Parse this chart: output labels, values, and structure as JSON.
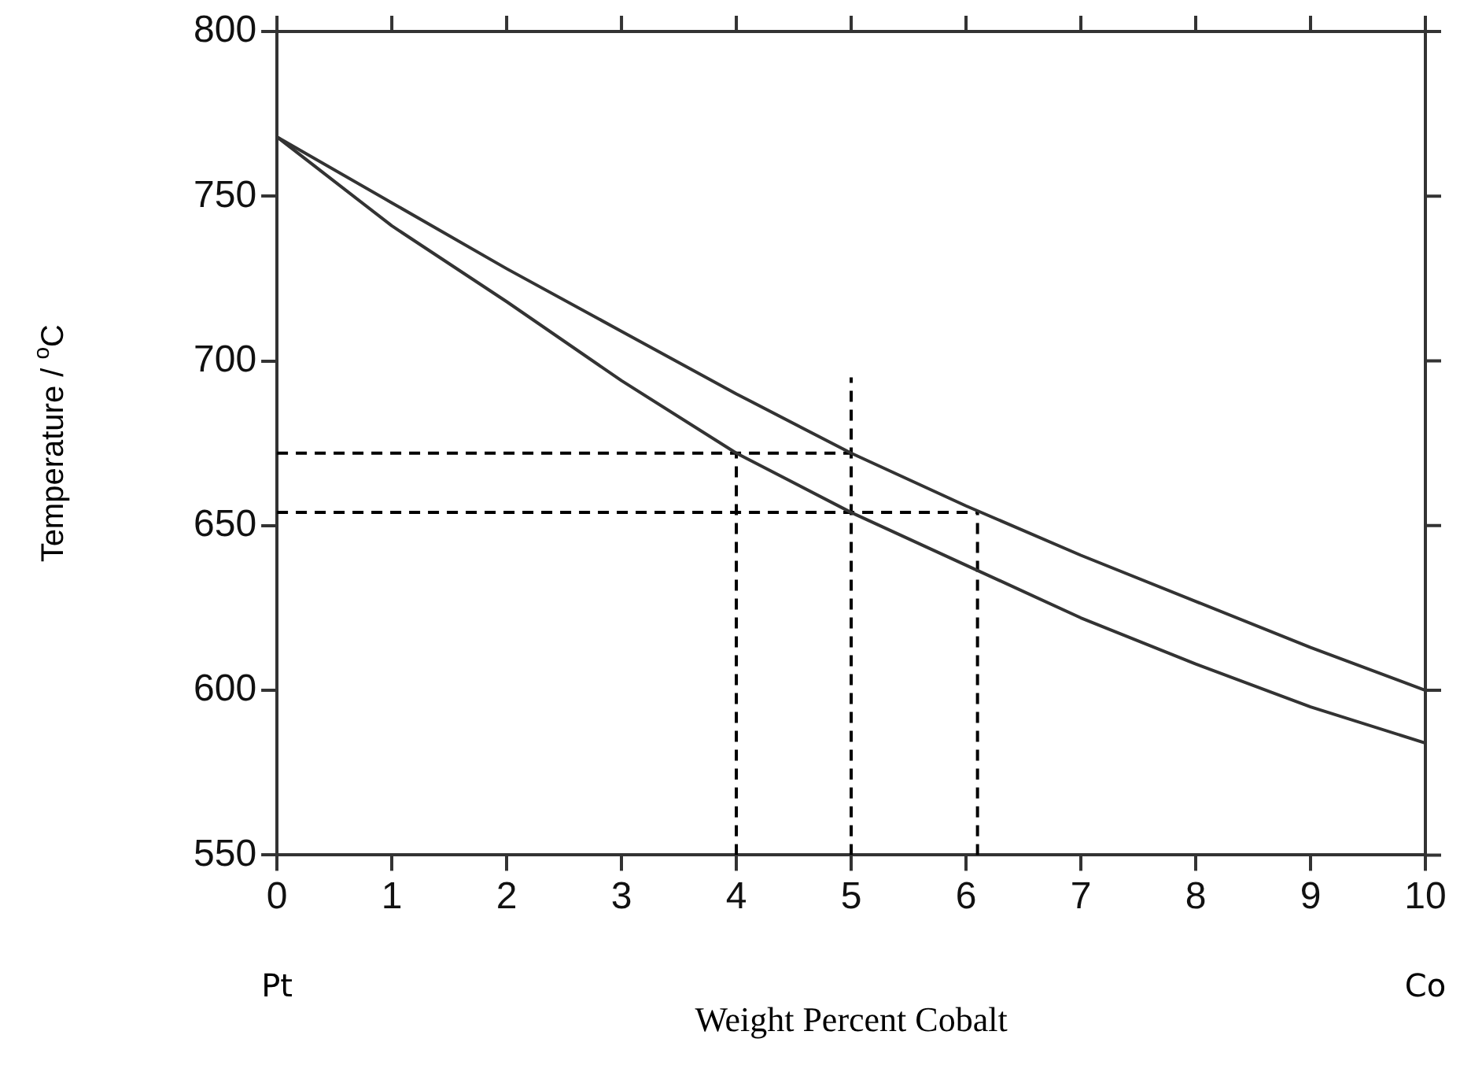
{
  "chart_data": {
    "type": "line",
    "xlabel": "Weight Percent Cobalt",
    "ylabel": "Temperature / $^{o}$C",
    "xlim": [
      0,
      10
    ],
    "xticks": [
      0,
      1,
      2,
      3,
      4,
      5,
      6,
      7,
      8,
      9,
      10
    ],
    "ylim": [
      550,
      800
    ],
    "yticks": [
      550,
      600,
      650,
      700,
      750,
      800
    ],
    "grid": false,
    "legend": false,
    "marker": "none",
    "annotations": [
      "Pt",
      "Co"
    ],
    "series": [
      {
        "color": "#333333",
        "x": [
          0,
          1,
          2,
          3,
          4,
          5,
          6,
          7,
          8,
          9,
          10
        ],
        "values": [
          768,
          748,
          728,
          709,
          690,
          672,
          656,
          641,
          627,
          613,
          600
        ]
      },
      {
        "color": "#333333",
        "x": [
          0,
          1,
          2,
          3,
          4,
          5,
          6,
          7,
          8,
          9,
          10
        ],
        "values": [
          768,
          741,
          718,
          694,
          672,
          654,
          638,
          622,
          608,
          595,
          584
        ]
      },
      {
        "color": "#000000",
        "line_style": "dashed",
        "x": [
          0,
          5
        ],
        "values": [
          672,
          672
        ]
      },
      {
        "color": "#000000",
        "line_style": "dashed",
        "x": [
          0,
          6.1
        ],
        "values": [
          654,
          654
        ]
      },
      {
        "color": "#000000",
        "line_style": "dashed",
        "x": [
          4,
          4
        ],
        "values": [
          550,
          672
        ]
      },
      {
        "color": "#000000",
        "line_style": "dashed",
        "x": [
          5,
          5
        ],
        "values": [
          550,
          695
        ]
      },
      {
        "color": "#000000",
        "line_style": "dashed",
        "x": [
          6.1,
          6.1
        ],
        "values": [
          550,
          654
        ]
      }
    ]
  }
}
